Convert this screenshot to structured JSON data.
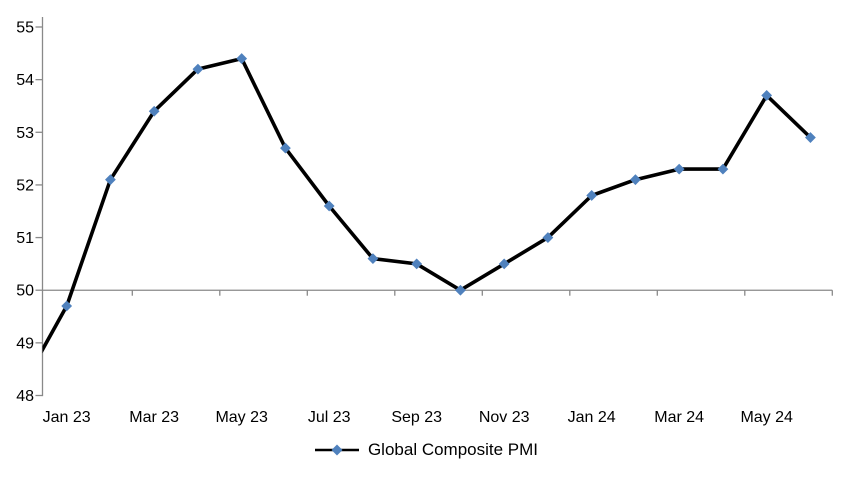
{
  "chart_data": {
    "type": "line",
    "title": "",
    "x": [
      "Dec 22",
      "Jan 23",
      "Feb 23",
      "Mar 23",
      "Apr 23",
      "May 23",
      "Jun 23",
      "Jul 23",
      "Aug 23",
      "Sep 23",
      "Oct 23",
      "Nov 23",
      "Dec 23",
      "Jan 24",
      "Feb 24",
      "Mar 24",
      "Apr 24",
      "May 24",
      "Jun 24"
    ],
    "series": [
      {
        "name": "Global Composite PMI",
        "values": [
          48.2,
          49.7,
          52.1,
          53.4,
          54.2,
          54.4,
          52.7,
          51.6,
          50.6,
          50.5,
          50.0,
          50.5,
          51.0,
          51.8,
          52.1,
          52.3,
          52.3,
          53.7,
          52.9
        ]
      }
    ],
    "x_tick_labels": [
      "Jan 23",
      "Mar 23",
      "May 23",
      "Jul 23",
      "Sep 23",
      "Nov 23",
      "Jan 24",
      "Mar 24",
      "May 24"
    ],
    "y_tick_labels": [
      "48",
      "49",
      "50",
      "51",
      "52",
      "53",
      "54",
      "55"
    ],
    "ylim": [
      48,
      55
    ],
    "reference_line": 50,
    "grid": false,
    "legend": [
      "Global Composite PMI"
    ],
    "legend_position": "bottom",
    "marker_shape": "diamond",
    "note_first_point": "Dec 22 point lies left of the plot edge; only its entering line segment is visible, clipped at the y-axis",
    "colors": {
      "series_line": "#000000",
      "marker_fill": "#4F81BD",
      "axis": "#898989",
      "label_text": "#000000",
      "background": "#FFFFFF"
    }
  }
}
